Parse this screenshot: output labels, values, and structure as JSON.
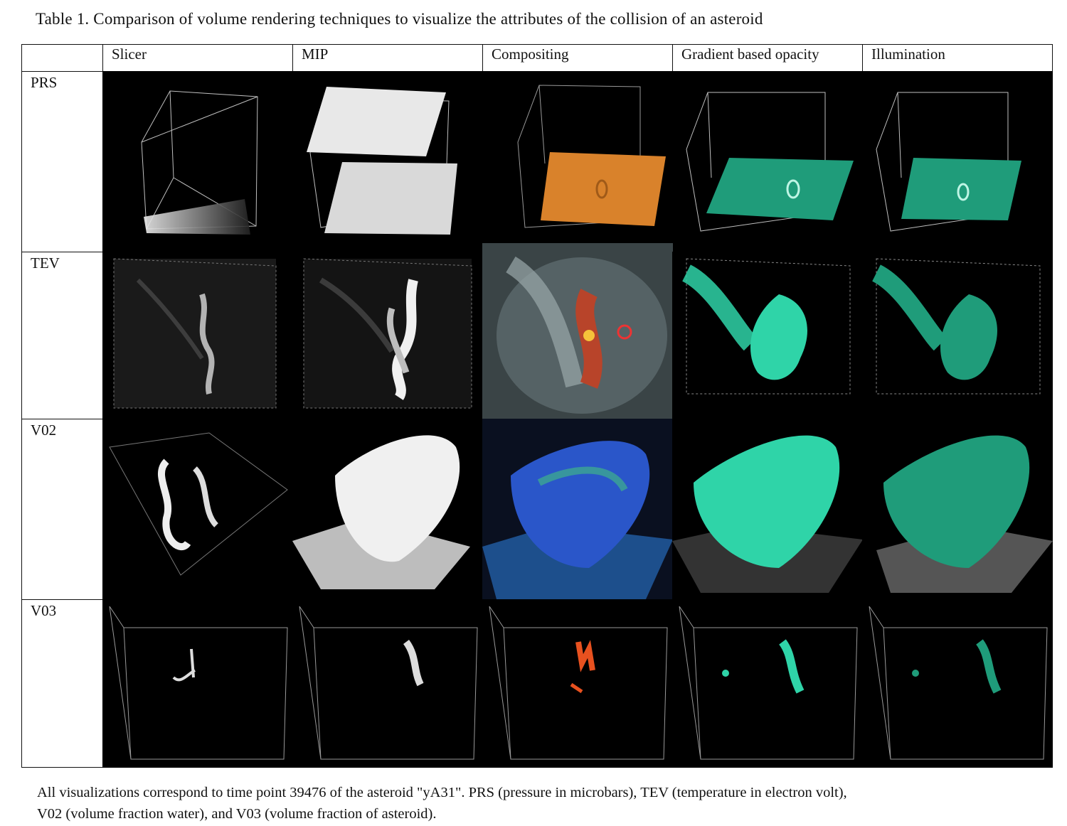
{
  "table": {
    "caption": "Table 1. Comparison of volume rendering techniques to visualize the attributes of the collision of an asteroid",
    "columns": [
      "Slicer",
      "MIP",
      "Compositing",
      "Gradient based opacity",
      "Illumination"
    ],
    "rows": [
      "PRS",
      "TEV",
      "V02",
      "V03"
    ],
    "footnote_line1": "All visualizations correspond to time point 39476 of the asteroid \"yA31\". PRS (pressure in microbars), TEV (temperature in electron volt),",
    "footnote_line2": "V02 (volume fraction water), and V03 (volume fraction of asteroid)."
  },
  "colors": {
    "cell_background": "#000000",
    "wireframe": "#bfbfbf",
    "grayscale": "#e6e6e6",
    "compositing_orange": "#d9822b",
    "teal": "#2fd4a8",
    "teal_dark": "#1f9c7a",
    "blue": "#2a56c9"
  }
}
